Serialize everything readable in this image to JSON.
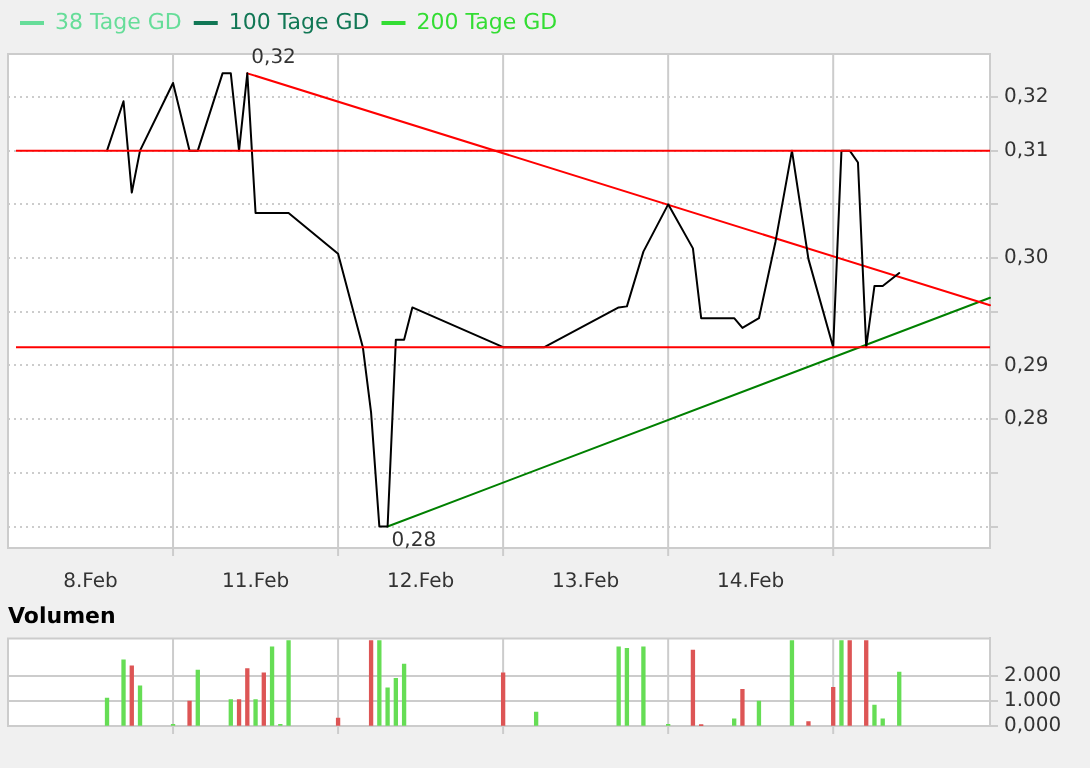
{
  "chart_data": [
    {
      "type": "line",
      "categories": [
        null,
        null,
        null,
        null,
        null,
        null,
        null,
        null,
        null,
        null,
        "8.Feb",
        null,
        null,
        null,
        null,
        null,
        null,
        null,
        null,
        null,
        null,
        null,
        null,
        null,
        null,
        null,
        null,
        null,
        null,
        null,
        "11.Feb",
        null,
        null,
        null,
        null,
        null,
        null,
        null,
        null,
        null,
        null,
        null,
        null,
        null,
        null,
        null,
        null,
        null,
        null,
        null,
        "12.Feb",
        null,
        null,
        null,
        null,
        null,
        null,
        null,
        null,
        null,
        null,
        null,
        null,
        null,
        null,
        null,
        null,
        null,
        null,
        null,
        "13.Feb",
        null,
        null,
        null,
        null,
        null,
        null,
        null,
        null,
        null,
        null,
        null,
        null,
        null,
        null,
        null,
        null,
        null,
        null,
        null,
        "14.Feb",
        null,
        null,
        null,
        null,
        null,
        null,
        null,
        null,
        null,
        null,
        null,
        null,
        null,
        null,
        null,
        null,
        null,
        null,
        null,
        null,
        null,
        null,
        null,
        null,
        null,
        null,
        null,
        null,
        null
      ],
      "ylim": [
        0.273,
        0.319
      ],
      "yticks": [
        {
          "value": 0.275,
          "label": null
        },
        {
          "value": 0.28,
          "label": null
        },
        {
          "value": 0.285,
          "label": "0,28"
        },
        {
          "value": 0.29,
          "label": "0,29"
        },
        {
          "value": 0.295,
          "label": null
        },
        {
          "value": 0.3,
          "label": "0,30"
        },
        {
          "value": 0.305,
          "label": null
        },
        {
          "value": 0.31,
          "label": "0,31"
        },
        {
          "value": 0.315,
          "label": "0,32"
        }
      ],
      "grid": true,
      "legend": "top left",
      "marker": "none",
      "series": [
        {
          "color": "#000000",
          "values": [
            null,
            null,
            null,
            null,
            null,
            null,
            null,
            null,
            null,
            null,
            null,
            null,
            0.31,
            null,
            0.3146,
            0.3061,
            0.31,
            null,
            null,
            null,
            0.3163,
            null,
            0.31,
            0.31,
            null,
            null,
            0.3172,
            0.3172,
            0.31,
            0.3172,
            0.3042,
            null,
            null,
            null,
            0.3042,
            null,
            null,
            null,
            null,
            null,
            0.3004,
            null,
            null,
            0.2917,
            0.2856,
            0.275,
            0.275,
            0.2924,
            0.2924,
            0.2954,
            null,
            null,
            null,
            null,
            null,
            null,
            null,
            null,
            null,
            null,
            0.2917,
            null,
            null,
            null,
            null,
            0.2917,
            null,
            null,
            null,
            null,
            null,
            null,
            null,
            null,
            0.2954,
            0.2955,
            null,
            0.3006,
            null,
            null,
            0.305,
            null,
            null,
            0.3009,
            0.2944,
            null,
            null,
            null,
            0.2944,
            0.2935,
            null,
            0.2944,
            null,
            0.3015,
            null,
            0.31,
            null,
            0.2999,
            null,
            null,
            0.2917,
            0.31,
            0.31,
            0.3089,
            0.2917,
            0.2974,
            0.2974,
            null,
            0.2986,
            null,
            null,
            null,
            null,
            null,
            null,
            null,
            null,
            null,
            null,
            null
          ]
        },
        {
          "color": "#ff0000",
          "values": [
            null,
            null,
            null,
            null,
            null,
            null,
            null,
            null,
            null,
            null,
            null,
            null,
            null,
            null,
            null,
            null,
            null,
            null,
            null,
            null,
            null,
            null,
            null,
            null,
            null,
            null,
            null,
            null,
            null,
            0.3172,
            null,
            null,
            null,
            null,
            null,
            null,
            null,
            null,
            null,
            null,
            null,
            null,
            null,
            null,
            null,
            null,
            null,
            null,
            null,
            null,
            null,
            null,
            null,
            null,
            null,
            null,
            null,
            null,
            null,
            null,
            null,
            null,
            null,
            null,
            null,
            null,
            null,
            null,
            null,
            null,
            null,
            null,
            null,
            null,
            null,
            null,
            null,
            null,
            null,
            null,
            null,
            null,
            null,
            null,
            null,
            null,
            null,
            null,
            null,
            null,
            null,
            null,
            null,
            null,
            null,
            null,
            null,
            null,
            null,
            null,
            null,
            null,
            null,
            null,
            null,
            null,
            null,
            null,
            null,
            null,
            null,
            null,
            null,
            null,
            null,
            null,
            null,
            null,
            null,
            0.2956
          ]
        },
        {
          "color": "#008000",
          "values": [
            null,
            null,
            null,
            null,
            null,
            null,
            null,
            null,
            null,
            null,
            null,
            null,
            null,
            null,
            null,
            null,
            null,
            null,
            null,
            null,
            null,
            null,
            null,
            null,
            null,
            null,
            null,
            null,
            null,
            null,
            null,
            null,
            null,
            null,
            null,
            null,
            null,
            null,
            null,
            null,
            null,
            null,
            null,
            null,
            null,
            null,
            0.275,
            null,
            null,
            null,
            null,
            null,
            null,
            null,
            null,
            null,
            null,
            null,
            null,
            null,
            null,
            null,
            null,
            null,
            null,
            null,
            null,
            null,
            null,
            null,
            null,
            null,
            null,
            null,
            null,
            null,
            null,
            null,
            null,
            null,
            null,
            null,
            null,
            null,
            null,
            null,
            null,
            null,
            null,
            null,
            null,
            null,
            null,
            null,
            null,
            null,
            null,
            null,
            null,
            null,
            null,
            null,
            null,
            null,
            null,
            null,
            null,
            null,
            null,
            null,
            null,
            null,
            null,
            null,
            null,
            null,
            null,
            null,
            null,
            0.2963
          ]
        },
        {
          "name": "38 Tage GD",
          "color": "#66dd99",
          "values": [
            null,
            null,
            null,
            null,
            null,
            null,
            null,
            null,
            null,
            null,
            null,
            null,
            null,
            null,
            null,
            null,
            null,
            null,
            null,
            null,
            null,
            null,
            null,
            null,
            null,
            null,
            null,
            null,
            null,
            null,
            null,
            null,
            null,
            null,
            null,
            null,
            null,
            null,
            null,
            null,
            null,
            null,
            null,
            null,
            null,
            null,
            null,
            null,
            null,
            null,
            null,
            null,
            null,
            null,
            null,
            null,
            null,
            null,
            null,
            null,
            null,
            null,
            null,
            null,
            null,
            null,
            null,
            null,
            null,
            null,
            null,
            null,
            null,
            null,
            null,
            null,
            null,
            null,
            null,
            null,
            null,
            null,
            null,
            null,
            null,
            null,
            null,
            null,
            null,
            null,
            null,
            null,
            null,
            null,
            null,
            null,
            null,
            null,
            null,
            null,
            null,
            null,
            null,
            null,
            null,
            null,
            null,
            null,
            null,
            null,
            null,
            null,
            null,
            null,
            null,
            null,
            null,
            null,
            null,
            null
          ]
        },
        {
          "name": "100 Tage GD",
          "color": "#117755",
          "values": [
            null,
            null,
            null,
            null,
            null,
            null,
            null,
            null,
            null,
            null,
            null,
            null,
            null,
            null,
            null,
            null,
            null,
            null,
            null,
            null,
            null,
            null,
            null,
            null,
            null,
            null,
            null,
            null,
            null,
            null,
            null,
            null,
            null,
            null,
            null,
            null,
            null,
            null,
            null,
            null,
            null,
            null,
            null,
            null,
            null,
            null,
            null,
            null,
            null,
            null,
            null,
            null,
            null,
            null,
            null,
            null,
            null,
            null,
            null,
            null,
            null,
            null,
            null,
            null,
            null,
            null,
            null,
            null,
            null,
            null,
            null,
            null,
            null,
            null,
            null,
            null,
            null,
            null,
            null,
            null,
            null,
            null,
            null,
            null,
            null,
            null,
            null,
            null,
            null,
            null,
            null,
            null,
            null,
            null,
            null,
            null,
            null,
            null,
            null,
            null,
            null,
            null,
            null,
            null,
            null,
            null,
            null,
            null,
            null,
            null,
            null,
            null,
            null,
            null,
            null,
            null,
            null,
            null,
            null,
            null
          ]
        },
        {
          "name": "200 Tage GD",
          "color": "#33dd33",
          "values": [
            null,
            null,
            null,
            null,
            null,
            null,
            null,
            null,
            null,
            null,
            null,
            null,
            null,
            null,
            null,
            null,
            null,
            null,
            null,
            null,
            null,
            null,
            null,
            null,
            null,
            null,
            null,
            null,
            null,
            null,
            null,
            null,
            null,
            null,
            null,
            null,
            null,
            null,
            null,
            null,
            null,
            null,
            null,
            null,
            null,
            null,
            null,
            null,
            null,
            null,
            null,
            null,
            null,
            null,
            null,
            null,
            null,
            null,
            null,
            null,
            null,
            null,
            null,
            null,
            null,
            null,
            null,
            null,
            null,
            null,
            null,
            null,
            null,
            null,
            null,
            null,
            null,
            null,
            null,
            null,
            null,
            null,
            null,
            null,
            null,
            null,
            null,
            null,
            null,
            null,
            null,
            null,
            null,
            null,
            null,
            null,
            null,
            null,
            null,
            null,
            null,
            null,
            null,
            null,
            null,
            null,
            null,
            null,
            null,
            null,
            null,
            null,
            null,
            null,
            null,
            null,
            null,
            null,
            null,
            null
          ]
        }
      ],
      "ref_lines": [
        {
          "axis": "y",
          "value": 0.31,
          "color": "#ff0000"
        },
        {
          "axis": "y",
          "value": 0.2917,
          "color": "#ff0000"
        }
      ],
      "annotations": [
        {
          "text": "0,32",
          "y": 0.3172
        },
        {
          "text": "0,28",
          "y": 0.275
        }
      ]
    },
    {
      "type": "bar",
      "title": "Volumen",
      "categories": [
        null,
        null,
        null,
        null,
        null,
        null,
        null,
        null,
        null,
        null,
        null,
        null,
        null,
        null,
        null,
        null,
        null,
        null,
        null,
        null,
        null,
        null,
        null,
        null,
        null,
        null,
        null,
        null,
        null,
        null,
        null,
        null,
        null,
        null,
        null,
        null,
        null,
        null,
        null,
        null,
        null,
        null,
        null,
        null,
        null,
        null,
        null,
        null,
        null,
        null,
        null,
        null,
        null,
        null,
        null,
        null,
        null,
        null,
        null,
        null,
        null,
        null,
        null,
        null,
        null,
        null,
        null,
        null,
        null,
        null,
        null,
        null,
        null,
        null,
        null,
        null,
        null,
        null,
        null,
        null,
        null,
        null,
        null,
        null,
        null,
        null,
        null,
        null,
        null,
        null,
        null,
        null,
        null,
        null,
        null,
        null,
        null,
        null,
        null,
        null,
        null,
        null,
        null,
        null,
        null,
        null,
        null,
        null,
        null,
        null,
        null,
        null,
        null,
        null,
        null,
        null,
        null,
        null,
        null,
        null
      ],
      "ylim": [
        0,
        3500
      ],
      "yticks": [
        {
          "value": 0,
          "label": "0,000"
        },
        {
          "value": 1000,
          "label": "1.000"
        },
        {
          "value": 2000,
          "label": "2.000"
        }
      ],
      "grid": true,
      "tick_labels": "y",
      "values": [
        null,
        null,
        null,
        null,
        null,
        null,
        null,
        null,
        null,
        null,
        null,
        null,
        1100,
        null,
        2630,
        2390,
        1590,
        null,
        null,
        null,
        50,
        null,
        980,
        2220,
        null,
        null,
        null,
        1040,
        1040,
        2280,
        1040,
        2110,
        3150,
        50,
        3400,
        null,
        null,
        null,
        null,
        null,
        300,
        null,
        null,
        null,
        3400,
        3400,
        1510,
        1890,
        2460,
        null,
        null,
        null,
        null,
        null,
        null,
        null,
        null,
        null,
        null,
        null,
        2110,
        null,
        null,
        null,
        540,
        null,
        null,
        null,
        null,
        null,
        null,
        null,
        null,
        null,
        3150,
        3090,
        null,
        3150,
        null,
        null,
        50,
        null,
        null,
        3020,
        30,
        null,
        null,
        null,
        270,
        1450,
        null,
        980,
        null,
        null,
        null,
        3400,
        null,
        160,
        null,
        null,
        1530,
        3400,
        3400,
        null,
        3400,
        820,
        270,
        null,
        2140,
        null,
        null,
        null,
        null,
        null,
        null,
        null,
        null,
        null,
        null,
        null
      ],
      "colors": [
        null,
        null,
        null,
        null,
        null,
        null,
        null,
        null,
        null,
        null,
        null,
        null,
        "#66dd55",
        null,
        "#66dd55",
        "#dd5555",
        "#66dd55",
        null,
        null,
        null,
        "#66dd55",
        null,
        "#dd5555",
        "#66dd55",
        null,
        null,
        null,
        "#66dd55",
        "#dd5555",
        "#dd5555",
        "#66dd55",
        "#dd5555",
        "#66dd55",
        "#66dd55",
        "#66dd55",
        null,
        null,
        null,
        null,
        null,
        "#dd5555",
        null,
        null,
        null,
        "#dd5555",
        "#66dd55",
        "#66dd55",
        "#66dd55",
        "#66dd55",
        null,
        null,
        null,
        null,
        null,
        null,
        null,
        null,
        null,
        null,
        null,
        "#dd5555",
        null,
        null,
        null,
        "#66dd55",
        null,
        null,
        null,
        null,
        null,
        null,
        null,
        null,
        null,
        "#66dd55",
        "#66dd55",
        null,
        "#66dd55",
        null,
        null,
        "#66dd55",
        null,
        null,
        "#dd5555",
        "#dd5555",
        null,
        null,
        null,
        "#66dd55",
        "#dd5555",
        null,
        "#66dd55",
        null,
        null,
        null,
        "#66dd55",
        null,
        "#dd5555",
        null,
        null,
        "#dd5555",
        "#66dd55",
        "#dd5555",
        null,
        "#dd5555",
        "#66dd55",
        "#66dd55",
        null,
        "#66dd55",
        null,
        null,
        null,
        null,
        null,
        null,
        null,
        null,
        null,
        null,
        null
      ]
    }
  ]
}
